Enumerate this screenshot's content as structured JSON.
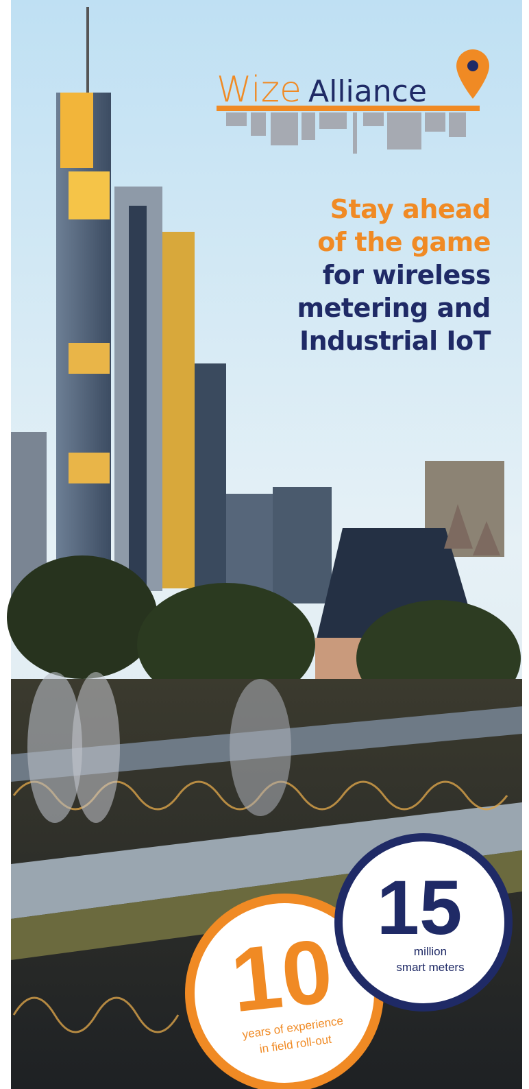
{
  "logo": {
    "word1": "Wize",
    "word2": "Alliance"
  },
  "headline": {
    "highlight_lines": [
      "Stay ahead",
      "of the game"
    ],
    "lines": [
      "for wireless",
      "metering and",
      "Industrial IoT"
    ]
  },
  "stats": [
    {
      "number": 15,
      "caption_lines": [
        "million",
        "smart meters"
      ]
    },
    {
      "number": 10,
      "caption_lines": [
        "years of experience",
        "in field roll-out"
      ]
    }
  ]
}
